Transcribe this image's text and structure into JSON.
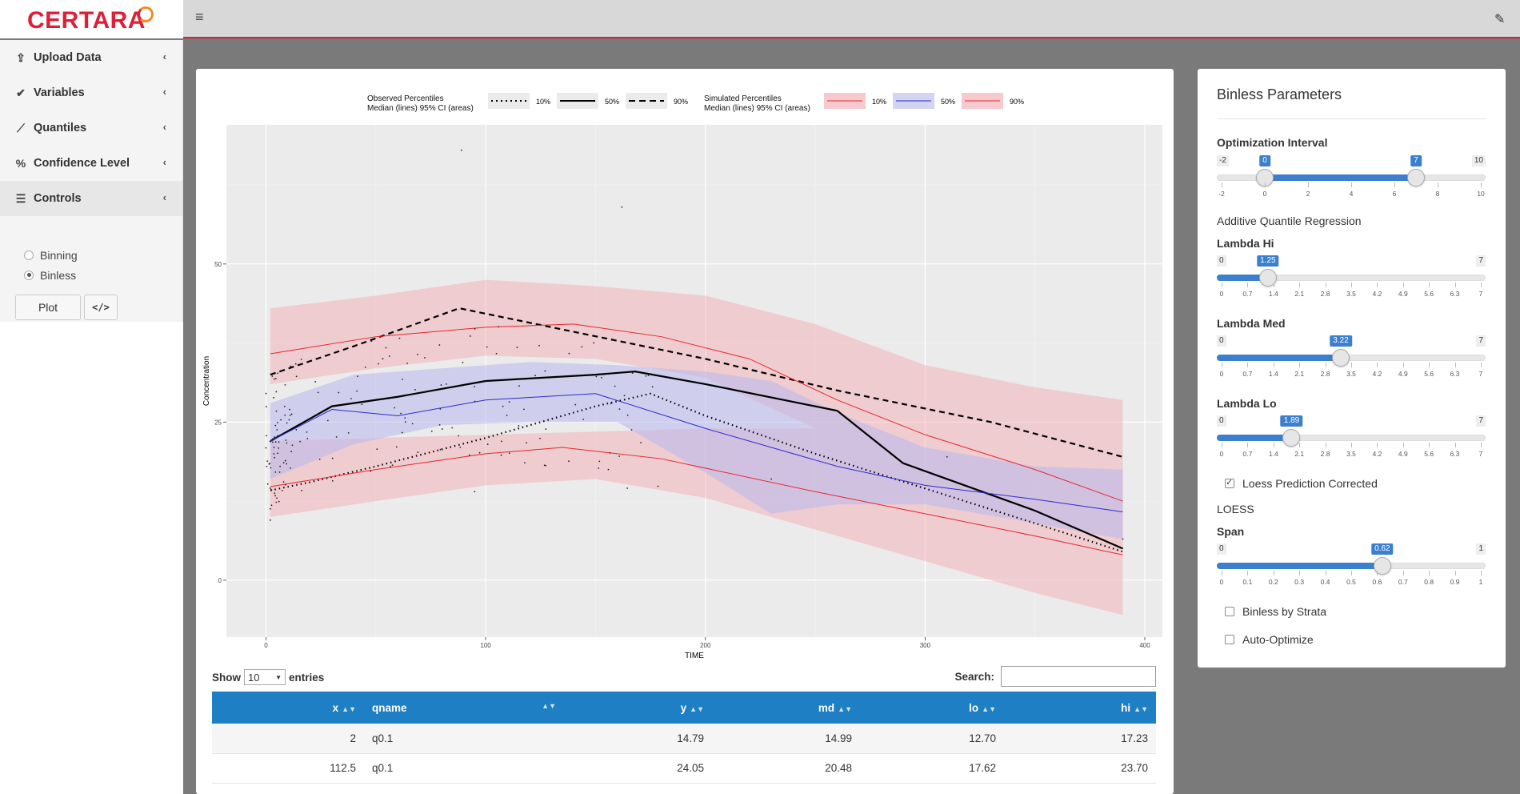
{
  "header": {
    "logo_text": "CERTARA",
    "menu_icon": "hamburger-icon",
    "brush_icon": "paint-brush-icon"
  },
  "sidebar": {
    "items": [
      {
        "label": "Upload Data",
        "icon": "upload-icon"
      },
      {
        "label": "Variables",
        "icon": "check-double-icon"
      },
      {
        "label": "Quantiles",
        "icon": "line-chart-icon"
      },
      {
        "label": "Confidence Level",
        "icon": "percent-icon"
      },
      {
        "label": "Controls",
        "icon": "sliders-icon"
      }
    ],
    "radios": [
      {
        "label": "Binning",
        "checked": false
      },
      {
        "label": "Binless",
        "checked": true
      }
    ],
    "plot_button": "Plot",
    "code_button": "</>"
  },
  "legend": {
    "observed_title": "Observed Percentiles",
    "observed_sub": "Median (lines) 95% CI (areas)",
    "simulated_title": "Simulated Percentiles",
    "simulated_sub": "Median (lines) 95% CI (areas)",
    "keys": [
      "10%",
      "50%",
      "90%"
    ]
  },
  "chart_data": {
    "type": "line",
    "xlabel": "TIME",
    "ylabel": "Concentration",
    "xlim": [
      -18,
      408
    ],
    "ylim": [
      -9,
      72
    ],
    "x_ticks": [
      0,
      100,
      200,
      300,
      400
    ],
    "y_ticks": [
      0,
      25,
      50
    ],
    "grid": true,
    "series": [
      {
        "name": "Observed 10%",
        "style": "dotted",
        "color": "#000000",
        "x": [
          2,
          20,
          50,
          100,
          150,
          175,
          200,
          250,
          300,
          350,
          390
        ],
        "y": [
          14.2,
          15.5,
          18,
          22.5,
          27.5,
          29.5,
          26,
          20,
          14.5,
          9,
          4.5
        ]
      },
      {
        "name": "Observed 50%",
        "style": "solid",
        "color": "#000000",
        "x": [
          2,
          30,
          60,
          100,
          150,
          168,
          200,
          260,
          290,
          350,
          390
        ],
        "y": [
          22,
          27.5,
          29,
          31.5,
          32.5,
          33,
          31,
          26.8,
          18.5,
          11,
          5
        ]
      },
      {
        "name": "Observed 90%",
        "style": "dashed",
        "color": "#000000",
        "x": [
          2,
          40,
          88,
          130,
          200,
          260,
          330,
          390
        ],
        "y": [
          32.5,
          37,
          43,
          40,
          35,
          30,
          25,
          19.5
        ]
      },
      {
        "name": "Simulated 10%",
        "style": "solid",
        "color": "#e8262b",
        "x": [
          2,
          50,
          100,
          135,
          180,
          250,
          300,
          350,
          390
        ],
        "y": [
          14.8,
          17.5,
          20,
          21,
          19.2,
          14,
          10.5,
          7,
          4
        ]
      },
      {
        "name": "Simulated 50%",
        "style": "solid",
        "color": "#2a2ad0",
        "x": [
          2,
          30,
          60,
          100,
          150,
          200,
          260,
          300,
          350,
          390
        ],
        "y": [
          22,
          27,
          26,
          28.5,
          29.5,
          24,
          18,
          15,
          12.8,
          10.8
        ]
      },
      {
        "name": "Simulated 90%",
        "style": "solid",
        "color": "#e8262b",
        "x": [
          2,
          50,
          100,
          140,
          180,
          220,
          260,
          300,
          350,
          390
        ],
        "y": [
          35.8,
          38.5,
          40,
          40.5,
          38.5,
          35,
          28.5,
          23,
          17.5,
          12.5
        ]
      }
    ],
    "bands": [
      {
        "name": "Simulated 90% CI",
        "color": "#f4a7b0",
        "x": [
          2,
          50,
          100,
          150,
          200,
          250,
          300,
          350,
          390
        ],
        "lo": [
          31,
          33.5,
          35.5,
          35,
          32,
          24,
          17,
          11,
          7
        ],
        "hi": [
          43,
          45,
          47.5,
          46.5,
          45,
          40.5,
          34,
          30.5,
          28.5
        ]
      },
      {
        "name": "Simulated 10% CI",
        "color": "#f4a7b0",
        "x": [
          2,
          50,
          100,
          150,
          200,
          250,
          300,
          350,
          390
        ],
        "lo": [
          10,
          12.5,
          15,
          16,
          13,
          8,
          3,
          -2,
          -5.5
        ]
      },
      {
        "name": "Simulated 50% CI",
        "color": "#b8b8ee",
        "x": [
          2,
          40,
          80,
          120,
          160,
          200,
          230,
          260,
          300,
          350,
          390
        ],
        "lo": [
          16,
          21.5,
          24.5,
          25,
          25,
          17,
          10.5,
          12,
          12,
          9,
          6.5
        ],
        "hi": [
          28,
          32.5,
          33.5,
          34.5,
          34,
          33,
          31.5,
          26.5,
          21,
          18,
          17.5
        ]
      }
    ]
  },
  "table": {
    "show_label": "Show",
    "entries_label": "entries",
    "page_size": "10",
    "search_label": "Search:",
    "columns": [
      "x",
      "qname",
      "y",
      "md",
      "lo",
      "hi"
    ],
    "rows": [
      [
        "2",
        "q0.1",
        "14.79",
        "14.99",
        "12.70",
        "17.23"
      ],
      [
        "112.5",
        "q0.1",
        "24.05",
        "20.48",
        "17.62",
        "23.70"
      ]
    ]
  },
  "params": {
    "title": "Binless Parameters",
    "opt_label": "Optimization Interval",
    "opt": {
      "min": "-2",
      "max": "10",
      "lo": "0",
      "hi": "7",
      "lo_frac": 0.1667,
      "hi_frac": 0.75,
      "ticks": [
        "-2",
        "0",
        "2",
        "4",
        "6",
        "8",
        "10"
      ]
    },
    "aqr_label": "Additive Quantile Regression",
    "lambda_hi_label": "Lambda Hi",
    "lambda_hi": {
      "min": "0",
      "max": "7",
      "value": "1.25",
      "frac": 0.1786
    },
    "lambda_med_label": "Lambda Med",
    "lambda_med": {
      "min": "0",
      "max": "7",
      "value": "3.22",
      "frac": 0.46
    },
    "lambda_lo_label": "Lambda Lo",
    "lambda_lo": {
      "min": "0",
      "max": "7",
      "value": "1.89",
      "frac": 0.27
    },
    "lambda_ticks": [
      "0",
      "0.7",
      "1.4",
      "2.1",
      "2.8",
      "3.5",
      "4.2",
      "4.9",
      "5.6",
      "6.3",
      "7"
    ],
    "loess_corrected_label": "Loess Prediction Corrected",
    "loess_label": "LOESS",
    "span_label": "Span",
    "span": {
      "min": "0",
      "max": "1",
      "value": "0.62",
      "frac": 0.62
    },
    "span_ticks": [
      "0",
      "0.1",
      "0.2",
      "0.3",
      "0.4",
      "0.5",
      "0.6",
      "0.7",
      "0.8",
      "0.9",
      "1"
    ],
    "strata_label": "Binless by Strata",
    "auto_label": "Auto-Optimize"
  }
}
